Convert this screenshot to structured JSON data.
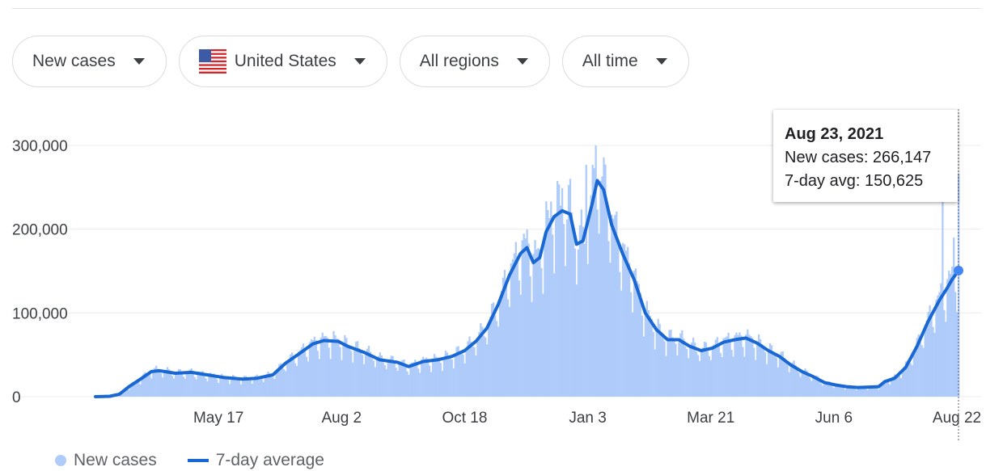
{
  "filters": {
    "metric": "New cases",
    "country": "United States",
    "region": "All regions",
    "period": "All time"
  },
  "colors": {
    "bars": "#aecbfa",
    "line": "#1967d2",
    "grid": "#ececec",
    "axis_text": "#3c4043"
  },
  "tooltip": {
    "date": "Aug 23, 2021",
    "new_cases_label": "New cases: 266,147",
    "avg_label": "7-day avg: 150,625"
  },
  "legend": {
    "bars_label": "New cases",
    "line_label": "7-day average"
  },
  "chart_data": {
    "type": "bar",
    "ylim": [
      0,
      300000
    ],
    "y_ticks": [
      0,
      100000,
      200000,
      300000
    ],
    "y_tick_labels": [
      "0",
      "100,000",
      "200,000",
      "300,000"
    ],
    "x_ticks": [
      "2020-05-17",
      "2020-08-02",
      "2020-10-18",
      "2021-01-03",
      "2021-03-21",
      "2021-06-06",
      "2021-08-22"
    ],
    "x_tick_labels": [
      "May 17",
      "Aug 2",
      "Oct 18",
      "Jan 3",
      "Mar 21",
      "Jun 6",
      "Aug 22"
    ],
    "x_range": [
      "2020-03-01",
      "2021-08-23"
    ],
    "series": [
      {
        "name": "7-day average",
        "type": "line",
        "points": [
          [
            "2020-03-01",
            0
          ],
          [
            "2020-03-10",
            500
          ],
          [
            "2020-03-16",
            3000
          ],
          [
            "2020-03-22",
            12000
          ],
          [
            "2020-03-30",
            22000
          ],
          [
            "2020-04-05",
            30000
          ],
          [
            "2020-04-10",
            31000
          ],
          [
            "2020-04-20",
            28000
          ],
          [
            "2020-04-30",
            29000
          ],
          [
            "2020-05-10",
            26000
          ],
          [
            "2020-05-20",
            23000
          ],
          [
            "2020-06-01",
            21000
          ],
          [
            "2020-06-10",
            22000
          ],
          [
            "2020-06-20",
            26000
          ],
          [
            "2020-06-28",
            40000
          ],
          [
            "2020-07-07",
            52000
          ],
          [
            "2020-07-15",
            63000
          ],
          [
            "2020-07-22",
            67000
          ],
          [
            "2020-07-31",
            66000
          ],
          [
            "2020-08-06",
            60000
          ],
          [
            "2020-08-16",
            53000
          ],
          [
            "2020-08-26",
            44000
          ],
          [
            "2020-09-06",
            41000
          ],
          [
            "2020-09-13",
            36000
          ],
          [
            "2020-09-22",
            42000
          ],
          [
            "2020-10-01",
            44000
          ],
          [
            "2020-10-10",
            48000
          ],
          [
            "2020-10-18",
            55000
          ],
          [
            "2020-10-25",
            66000
          ],
          [
            "2020-11-01",
            82000
          ],
          [
            "2020-11-08",
            110000
          ],
          [
            "2020-11-15",
            145000
          ],
          [
            "2020-11-22",
            171000
          ],
          [
            "2020-11-26",
            178000
          ],
          [
            "2020-11-30",
            160000
          ],
          [
            "2020-12-04",
            166000
          ],
          [
            "2020-12-08",
            197000
          ],
          [
            "2020-12-13",
            215000
          ],
          [
            "2020-12-18",
            222000
          ],
          [
            "2020-12-23",
            218000
          ],
          [
            "2020-12-27",
            182000
          ],
          [
            "2020-12-31",
            186000
          ],
          [
            "2021-01-06",
            232000
          ],
          [
            "2021-01-09",
            258000
          ],
          [
            "2021-01-13",
            247000
          ],
          [
            "2021-01-18",
            205000
          ],
          [
            "2021-01-25",
            170000
          ],
          [
            "2021-02-01",
            140000
          ],
          [
            "2021-02-08",
            100000
          ],
          [
            "2021-02-15",
            80000
          ],
          [
            "2021-02-22",
            68000
          ],
          [
            "2021-03-01",
            68000
          ],
          [
            "2021-03-08",
            60000
          ],
          [
            "2021-03-15",
            55000
          ],
          [
            "2021-03-22",
            58000
          ],
          [
            "2021-03-29",
            65000
          ],
          [
            "2021-04-05",
            68000
          ],
          [
            "2021-04-12",
            70000
          ],
          [
            "2021-04-19",
            64000
          ],
          [
            "2021-04-26",
            55000
          ],
          [
            "2021-05-03",
            48000
          ],
          [
            "2021-05-10",
            38000
          ],
          [
            "2021-05-17",
            30000
          ],
          [
            "2021-05-24",
            24000
          ],
          [
            "2021-05-31",
            17000
          ],
          [
            "2021-06-07",
            14000
          ],
          [
            "2021-06-14",
            12000
          ],
          [
            "2021-06-21",
            11000
          ],
          [
            "2021-06-28",
            11500
          ],
          [
            "2021-07-04",
            12000
          ],
          [
            "2021-07-08",
            18000
          ],
          [
            "2021-07-14",
            22000
          ],
          [
            "2021-07-21",
            35000
          ],
          [
            "2021-07-28",
            60000
          ],
          [
            "2021-08-04",
            90000
          ],
          [
            "2021-08-11",
            115000
          ],
          [
            "2021-08-16",
            130000
          ],
          [
            "2021-08-19",
            140000
          ],
          [
            "2021-08-23",
            150625
          ]
        ]
      },
      {
        "name": "New cases",
        "type": "bar",
        "note": "daily bars oscillating around the 7-day average",
        "spikes": [
          [
            "2020-12-11",
            233000
          ],
          [
            "2020-12-18",
            249000
          ],
          [
            "2021-01-02",
            277000
          ],
          [
            "2021-01-08",
            300000
          ],
          [
            "2021-08-13",
            240000
          ],
          [
            "2021-08-20",
            190000
          ],
          [
            "2021-08-23",
            266147
          ]
        ]
      }
    ]
  }
}
